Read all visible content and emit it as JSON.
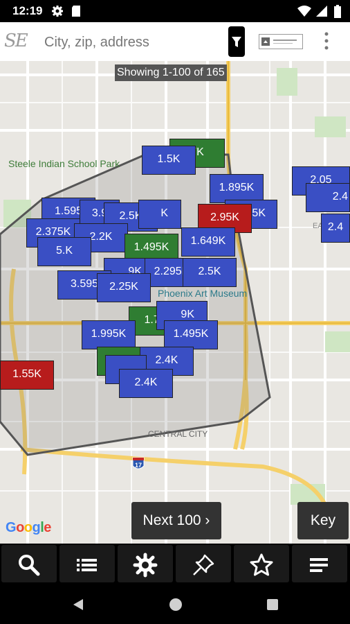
{
  "status_bar": {
    "time": "12:19"
  },
  "search": {
    "placeholder": "City, zip, address",
    "logo_text": "SE"
  },
  "map": {
    "showing": "Showing 1-100 of 165",
    "labels": {
      "park": "Steele Indian School Park",
      "museum": "Phoenix Art Museum",
      "district": "CENTRAL CITY",
      "interstate": "17",
      "east": "EA"
    },
    "markers": [
      "7K",
      "1.5K",
      "1.895K",
      "2.05",
      "2.4",
      "2.4",
      "2.95K",
      "5K",
      "1.595",
      "3.9",
      "2.5K",
      "K",
      "2.375K",
      "2.2K",
      "1.495K",
      "1.649K",
      "5.K",
      "9K",
      "2.295K",
      "2.5K",
      "3.595",
      "2.25K",
      "1.7K",
      "9K",
      "1.995K",
      "1.495K",
      "1.55K",
      "2.4K",
      "2.4K"
    ],
    "attribution": "Google"
  },
  "actions": {
    "next": "Next 100 ›",
    "key": "Key"
  },
  "colors": {
    "blue": "#3a4fc4",
    "green": "#2f7d32",
    "red": "#b71c1c",
    "boundary": "#555555"
  }
}
